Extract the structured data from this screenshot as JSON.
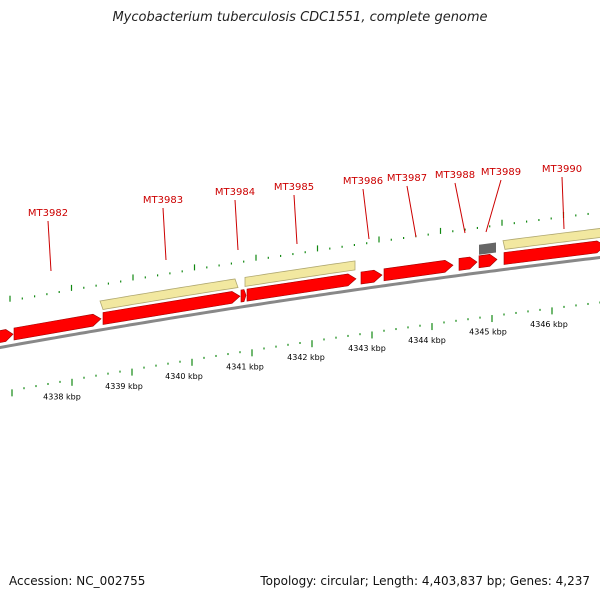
{
  "title": "Mycobacterium tuberculosis CDC1551, complete genome",
  "footer": {
    "accession": "Accession: NC_002755",
    "info": "Topology: circular; Length: 4,403,837 bp; Genes: 4,237"
  },
  "colors": {
    "gene": "#ff0000",
    "gene_shadow": "#a00000",
    "band": "#f2e8a0",
    "band_shadow": "#b0a870",
    "backbone": "#888888",
    "tick": "#118811",
    "label_line": "#cc0000",
    "label_text": "#cc0000",
    "other_feature": "#666666"
  },
  "genes": [
    {
      "id": "MT3982"
    },
    {
      "id": "MT3983"
    },
    {
      "id": "MT3984"
    },
    {
      "id": "MT3985"
    },
    {
      "id": "MT3986"
    },
    {
      "id": "MT3987"
    },
    {
      "id": "MT3988"
    },
    {
      "id": "MT3989"
    },
    {
      "id": "MT3990"
    }
  ],
  "scale_labels": [
    {
      "text": "4338 kbp"
    },
    {
      "text": "4339 kbp"
    },
    {
      "text": "4340 kbp"
    },
    {
      "text": "4341 kbp"
    },
    {
      "text": "4342 kbp"
    },
    {
      "text": "4343 kbp"
    },
    {
      "text": "4344 kbp"
    },
    {
      "text": "4345 kbp"
    },
    {
      "text": "4346 kbp"
    }
  ]
}
